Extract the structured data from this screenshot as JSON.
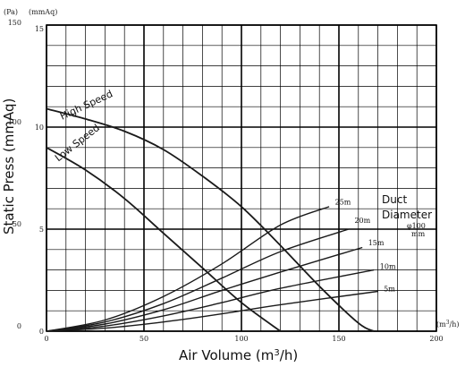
{
  "chart_data": {
    "type": "line",
    "xlabel_prefix": "Air Volume (m",
    "xlabel_sup": "3",
    "xlabel_suffix": "/h)",
    "ylabel": "Static Press (mmAq)",
    "y_unit_pa": "(Pa)",
    "y_unit_mmaq": "(mmAq)",
    "x_unit_prefix": "(m",
    "x_unit_sup": "3",
    "x_unit_suffix": "/h)",
    "xlim": [
      0,
      200
    ],
    "ylim_mmaq": [
      0,
      15
    ],
    "x_ticks": [
      {
        "value": 0,
        "label": "0"
      },
      {
        "value": 50,
        "label": "50"
      },
      {
        "value": 100,
        "label": "100"
      },
      {
        "value": 150,
        "label": "150"
      },
      {
        "value": 200,
        "label": "200"
      }
    ],
    "y_ticks_mmaq": [
      {
        "value": 0,
        "label": "0"
      },
      {
        "value": 5,
        "label": "5"
      },
      {
        "value": 10,
        "label": "10"
      },
      {
        "value": 15,
        "label": "15"
      }
    ],
    "y_ticks_pa": [
      {
        "value": 0,
        "label": "0"
      },
      {
        "value": 5,
        "label": "50"
      },
      {
        "value": 10,
        "label": "100"
      },
      {
        "value": 15,
        "label": "150"
      }
    ],
    "grid": true,
    "fan_curves": [
      {
        "name": "High Speed",
        "label_x": 8,
        "label_y": 10.35,
        "label_angle": -25,
        "x": [
          0,
          20,
          40,
          60,
          80,
          100,
          120,
          140,
          160,
          168
        ],
        "y": [
          10.9,
          10.4,
          9.8,
          8.9,
          7.6,
          6.1,
          4.2,
          2.2,
          0.4,
          0
        ]
      },
      {
        "name": "Low Speed",
        "label_x": 6,
        "label_y": 8.3,
        "label_angle": -38,
        "x": [
          0,
          20,
          40,
          60,
          80,
          100,
          120
        ],
        "y": [
          9.0,
          7.9,
          6.5,
          4.8,
          3.1,
          1.4,
          0
        ]
      }
    ],
    "duct_curves": [
      {
        "name": "25m",
        "x": [
          0,
          30,
          60,
          90,
          120,
          145
        ],
        "y": [
          0,
          0.55,
          1.7,
          3.3,
          5.2,
          6.1
        ],
        "label_x": 148,
        "label_y": 6.2
      },
      {
        "name": "20m",
        "x": [
          0,
          30,
          60,
          90,
          120,
          155
        ],
        "y": [
          0,
          0.45,
          1.35,
          2.6,
          3.9,
          5.0
        ],
        "label_x": 158,
        "label_y": 5.3
      },
      {
        "name": "15m",
        "x": [
          0,
          30,
          60,
          90,
          120,
          162
        ],
        "y": [
          0,
          0.35,
          1.05,
          2.0,
          2.9,
          4.1
        ],
        "label_x": 165,
        "label_y": 4.2
      },
      {
        "name": "10m",
        "x": [
          0,
          30,
          60,
          90,
          120,
          168
        ],
        "y": [
          0,
          0.25,
          0.75,
          1.4,
          2.1,
          3.0
        ],
        "label_x": 171,
        "label_y": 3.05
      },
      {
        "name": "5m",
        "x": [
          0,
          30,
          60,
          90,
          120,
          170
        ],
        "y": [
          0,
          0.15,
          0.45,
          0.85,
          1.3,
          1.95
        ],
        "label_x": 173,
        "label_y": 1.95
      }
    ],
    "note": {
      "line1": "Duct",
      "line2": "Diameter",
      "line3": "φ100",
      "line4": "mm"
    },
    "colors": {
      "grid": "#000000",
      "curve": "#1a1a1a"
    }
  }
}
